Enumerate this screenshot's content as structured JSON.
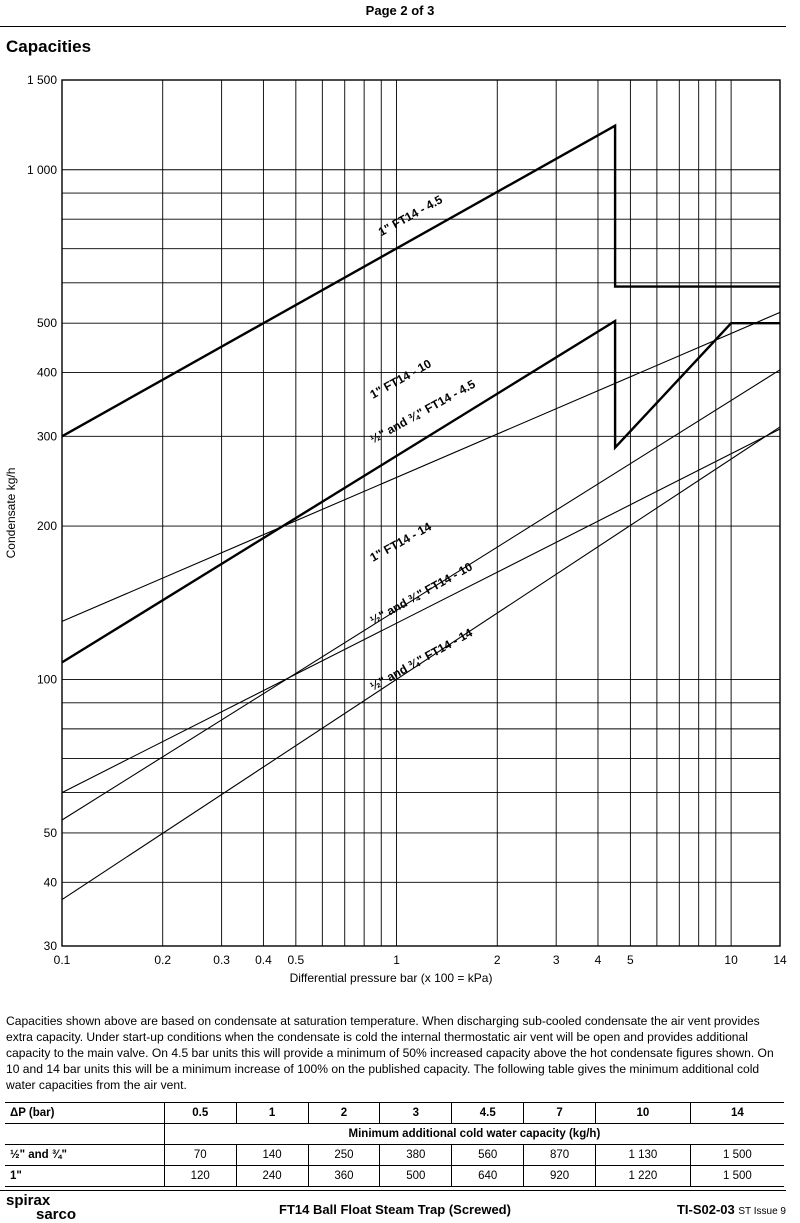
{
  "page": {
    "page_label": "Page 2 of 3",
    "section_title": "Capacities"
  },
  "chart_data": {
    "type": "line",
    "xscale": "log",
    "yscale": "log",
    "xlim": [
      0.1,
      14
    ],
    "ylim": [
      30,
      1500
    ],
    "xlabel": "Differential pressure bar (x 100 = kPa)",
    "ylabel": "Condensate kg/h",
    "grid": true,
    "x_ticks": [
      0.1,
      0.2,
      0.3,
      0.4,
      0.5,
      1,
      2,
      3,
      4,
      5,
      10,
      14
    ],
    "x_tick_labels": [
      "0.1",
      "0.2",
      "0.3",
      "0.4",
      "0.5",
      "1",
      "2",
      "3",
      "4",
      "5",
      "10",
      "14"
    ],
    "x_minor_gridlines": [
      0.6,
      0.7,
      0.8,
      0.9,
      6,
      7,
      8,
      9
    ],
    "y_ticks": [
      30,
      40,
      50,
      100,
      200,
      300,
      400,
      500,
      1000,
      1500
    ],
    "y_tick_labels": [
      "30",
      "40",
      "50",
      "100",
      "200",
      "300",
      "400",
      "500",
      "1 000",
      "1 500"
    ],
    "y_minor_gridlines": [
      60,
      70,
      80,
      90,
      600,
      700,
      800,
      900
    ],
    "series": [
      {
        "name": "1\" FT14 - 4.5",
        "bold": true,
        "x": [
          0.1,
          4.5,
          4.5,
          14
        ],
        "y": [
          300,
          1220,
          590,
          590
        ]
      },
      {
        "name": "1\" FT14 - 10",
        "bold": false,
        "x": [
          0.1,
          14
        ],
        "y": [
          130,
          525
        ]
      },
      {
        "name": "½\" and ¾\" FT14 - 4.5",
        "bold": true,
        "x": [
          0.1,
          4.5,
          4.5,
          10,
          10,
          14
        ],
        "y": [
          108,
          505,
          285,
          500,
          500,
          500
        ]
      },
      {
        "name": "1\" FT14 - 14",
        "bold": false,
        "x": [
          0.1,
          14
        ],
        "y": [
          60,
          310
        ]
      },
      {
        "name": "½\" and ¾\" FT14 - 10",
        "bold": false,
        "x": [
          0.1,
          14
        ],
        "y": [
          53,
          405
        ]
      },
      {
        "name": "½\" and ¾\" FT14 - 14",
        "bold": false,
        "x": [
          0.1,
          14
        ],
        "y": [
          37,
          313
        ]
      }
    ]
  },
  "description": "Capacities shown above are based on condensate at saturation temperature. When discharging sub-cooled condensate the air vent provides extra capacity. Under start-up conditions when the condensate is cold the internal thermostatic air vent will be open and provides additional capacity to the main valve. On 4.5 bar units this will provide a minimum of 50% increased capacity above the hot condensate figures shown. On 10 and 14 bar units this will be a minimum increase of 100% on the published capacity. The following table gives the minimum additional cold water capacities from the air vent.",
  "table": {
    "header_label": "ΔP (bar)",
    "pressures": [
      "0.5",
      "1",
      "2",
      "3",
      "4.5",
      "7",
      "10",
      "14"
    ],
    "subheader": "Minimum additional cold water capacity (kg/h)",
    "rows": [
      {
        "label": "½\" and ¾\"",
        "values": [
          "70",
          "140",
          "250",
          "380",
          "560",
          "870",
          "1 130",
          "1 500"
        ]
      },
      {
        "label": "1\"",
        "values": [
          "120",
          "240",
          "360",
          "500",
          "640",
          "920",
          "1 220",
          "1 500"
        ]
      }
    ]
  },
  "footer": {
    "logo_line1": "spirax",
    "logo_line2": "sarco",
    "title": "FT14 Ball Float Steam Trap (Screwed)",
    "doc_ref": "TI-S02-03",
    "issue": "ST Issue 9"
  }
}
